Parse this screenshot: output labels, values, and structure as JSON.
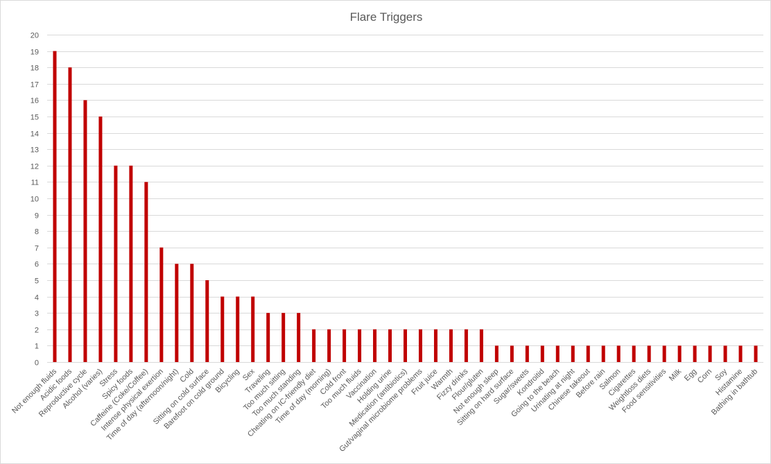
{
  "chart_data": {
    "type": "bar",
    "title": "Flare Triggers",
    "xlabel": "",
    "ylabel": "",
    "ylim": [
      0,
      20
    ],
    "yticks": [
      0,
      1,
      2,
      3,
      4,
      5,
      6,
      7,
      8,
      9,
      10,
      11,
      12,
      13,
      14,
      15,
      16,
      17,
      18,
      19,
      20
    ],
    "grid": true,
    "legend": "none",
    "bar_color": "#c00000",
    "categories": [
      "Not enough fluids",
      "Acidic foods",
      "Reproductive cycle",
      "Alcohol (varies)",
      "Stress",
      "Spicy foods",
      "Caffeine (Coke/Coffee)",
      "Intense physical exertion",
      "Time of day (afternoon/night)",
      "Cold",
      "Sitting on cold surface",
      "Barefoot on cold ground",
      "Bicycling",
      "Sex",
      "Traveling",
      "Too much sitting",
      "Too much standing",
      "Cheating on IC-friendly diet",
      "Time of day (morning)",
      "Cold front",
      "Too much fluids",
      "Vaccination",
      "Holding urine",
      "Medication (antibiotics)",
      "Gut/vaginal microbiome problems",
      "Fruit juice",
      "Warmth",
      "Fizzy drinks",
      "Flour/gluten",
      "Not enough sleep",
      "Sitting on hard surface",
      "Sugar/sweets",
      "Kondroitid",
      "Going to the beach",
      "Urinating at night",
      "Chinese takeout",
      "Before rain",
      "Salmon",
      "Cigarettes",
      "Weightloss diets",
      "Food sensitivities",
      "Milk",
      "Egg",
      "Corn",
      "Soy",
      "Histamine",
      "Bathing in bathtub"
    ],
    "values": [
      19,
      18,
      16,
      15,
      12,
      12,
      11,
      7,
      6,
      6,
      5,
      4,
      4,
      4,
      3,
      3,
      3,
      2,
      2,
      2,
      2,
      2,
      2,
      2,
      2,
      2,
      2,
      2,
      2,
      1,
      1,
      1,
      1,
      1,
      1,
      1,
      1,
      1,
      1,
      1,
      1,
      1,
      1,
      1,
      1,
      1,
      1
    ]
  }
}
